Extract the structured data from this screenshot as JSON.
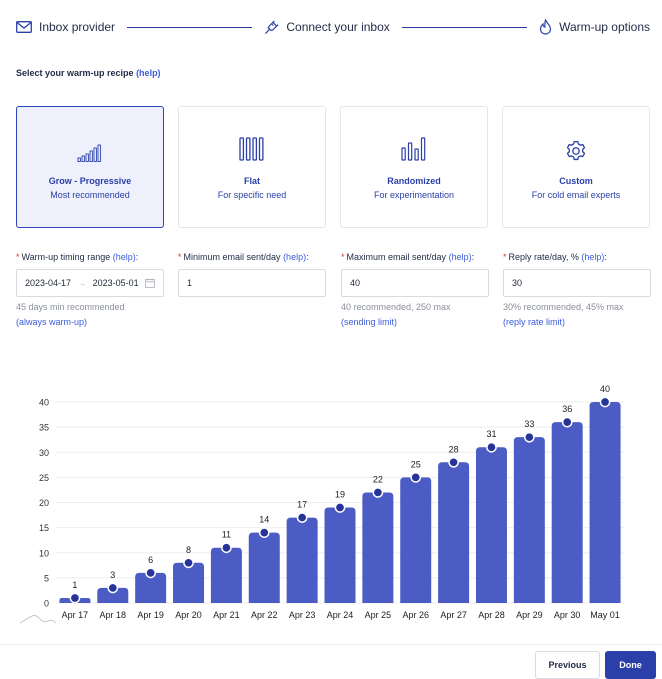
{
  "stepper": {
    "steps": [
      {
        "label": "Inbox provider",
        "icon": "envelope-icon"
      },
      {
        "label": "Connect your inbox",
        "icon": "plug-icon"
      },
      {
        "label": "Warm-up options",
        "icon": "flame-icon"
      }
    ]
  },
  "recipe": {
    "title": "Select your warm-up recipe",
    "help": "(help)",
    "cards": [
      {
        "title": "Grow - Progressive",
        "subtitle": "Most recommended",
        "icon": "ascending-bars-icon",
        "selected": true
      },
      {
        "title": "Flat",
        "subtitle": "For specific need",
        "icon": "flat-bars-icon",
        "selected": false
      },
      {
        "title": "Randomized",
        "subtitle": "For experimentation",
        "icon": "random-bars-icon",
        "selected": false
      },
      {
        "title": "Custom",
        "subtitle": "For cold email experts",
        "icon": "gear-icon",
        "selected": false
      }
    ]
  },
  "fields": {
    "timing": {
      "label": "Warm-up timing range",
      "help": "(help)",
      "start": "2023-04-17",
      "end": "2023-05-01",
      "hint": "45 days min recommended",
      "link": "(always warm-up)"
    },
    "min_sent": {
      "label": "Minimum email sent/day",
      "help": "(help)",
      "value": "1"
    },
    "max_sent": {
      "label": "Maximum email sent/day",
      "help": "(help)",
      "value": "40",
      "hint": "40 recommended, 250 max",
      "link": "(sending limit)"
    },
    "reply_rate": {
      "label": "Reply rate/day, %",
      "help": "(help)",
      "value": "30",
      "hint": "30% recommended, 45% max",
      "link": "(reply rate limit)"
    }
  },
  "chart_data": {
    "type": "bar",
    "categories": [
      "Apr 17",
      "Apr 18",
      "Apr 19",
      "Apr 20",
      "Apr 21",
      "Apr 22",
      "Apr 23",
      "Apr 24",
      "Apr 25",
      "Apr 26",
      "Apr 27",
      "Apr 28",
      "Apr 29",
      "Apr 30",
      "May 01"
    ],
    "values": [
      1,
      3,
      6,
      8,
      11,
      14,
      17,
      19,
      22,
      25,
      28,
      31,
      33,
      36,
      40
    ],
    "yticks": [
      0,
      5,
      10,
      15,
      20,
      25,
      30,
      35,
      40
    ],
    "ylim": [
      0,
      40
    ],
    "grid": true,
    "bar_color": "#4b5cc4"
  },
  "footer": {
    "previous_label": "Previous",
    "done_label": "Done"
  },
  "colors": {
    "accent": "#2a3fa8",
    "link": "#3b5bdb",
    "required": "#e03131"
  }
}
